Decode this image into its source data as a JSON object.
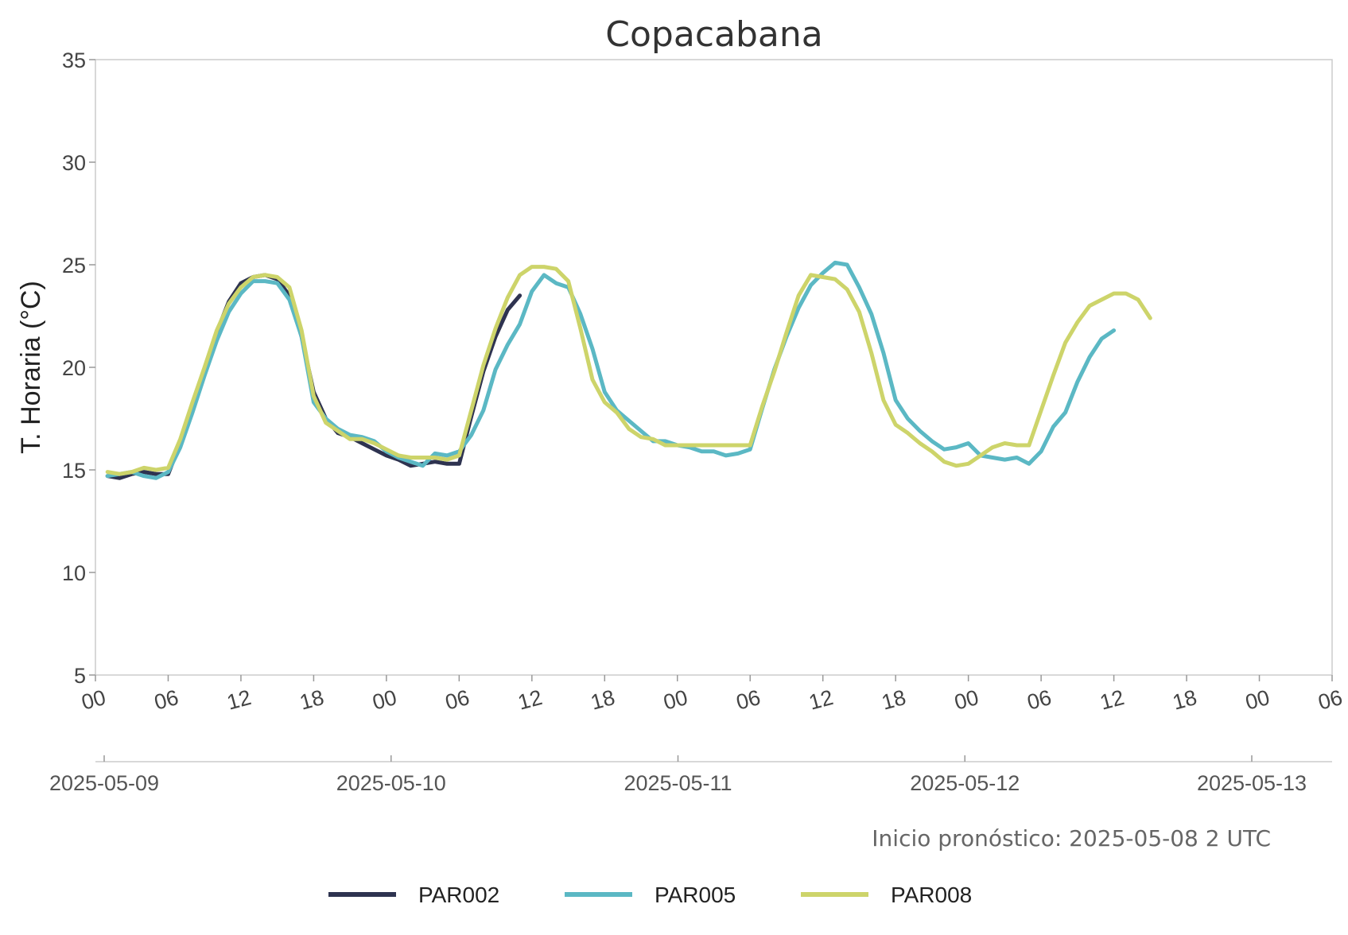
{
  "chart_data": {
    "type": "line",
    "title": "Copacabana",
    "ylabel": "T. Horaria (°C)",
    "xlabel": "",
    "ylim": [
      5,
      35
    ],
    "yticks": [
      5,
      10,
      15,
      20,
      25,
      30,
      35
    ],
    "x_unit": "hours from 2025-05-09 00:00",
    "xlim": [
      0,
      102
    ],
    "hour_ticks": [
      {
        "x": 0,
        "label": "00"
      },
      {
        "x": 6,
        "label": "06"
      },
      {
        "x": 12,
        "label": "12"
      },
      {
        "x": 18,
        "label": "18"
      },
      {
        "x": 24,
        "label": "00"
      },
      {
        "x": 30,
        "label": "06"
      },
      {
        "x": 36,
        "label": "12"
      },
      {
        "x": 42,
        "label": "18"
      },
      {
        "x": 48,
        "label": "00"
      },
      {
        "x": 54,
        "label": "06"
      },
      {
        "x": 60,
        "label": "12"
      },
      {
        "x": 66,
        "label": "18"
      },
      {
        "x": 72,
        "label": "00"
      },
      {
        "x": 78,
        "label": "06"
      },
      {
        "x": 84,
        "label": "12"
      },
      {
        "x": 90,
        "label": "18"
      },
      {
        "x": 96,
        "label": "00"
      },
      {
        "x": 102,
        "label": "06"
      }
    ],
    "date_ticks": [
      {
        "x": 0,
        "label": "2025-05-09"
      },
      {
        "x": 24,
        "label": "2025-05-10"
      },
      {
        "x": 48,
        "label": "2025-05-11"
      },
      {
        "x": 72,
        "label": "2025-05-12"
      },
      {
        "x": 96,
        "label": "2025-05-13"
      }
    ],
    "annotation": "Inicio pronóstico: 2025-05-08 2 UTC",
    "legend_position": "bottom",
    "grid": false,
    "series": [
      {
        "name": "PAR002",
        "color": "#2e3350",
        "x": [
          1,
          2,
          3,
          4,
          5,
          6,
          7,
          8,
          9,
          10,
          11,
          12,
          13,
          14,
          15,
          16,
          17,
          18,
          19,
          20,
          21,
          22,
          23,
          24,
          25,
          26,
          27,
          28,
          29,
          30,
          31,
          32,
          33,
          34,
          35
        ],
        "y": [
          14.7,
          14.6,
          14.8,
          14.9,
          14.8,
          14.8,
          16.3,
          17.9,
          19.8,
          21.7,
          23.2,
          24.1,
          24.4,
          24.5,
          24.3,
          23.5,
          21.5,
          18.8,
          17.5,
          16.8,
          16.6,
          16.3,
          16.0,
          15.7,
          15.5,
          15.2,
          15.3,
          15.4,
          15.3,
          15.3,
          17.6,
          19.8,
          21.5,
          22.8,
          23.5
        ]
      },
      {
        "name": "PAR005",
        "color": "#5bb8c4",
        "x": [
          1,
          2,
          3,
          4,
          5,
          6,
          7,
          8,
          9,
          10,
          11,
          12,
          13,
          14,
          15,
          16,
          17,
          18,
          19,
          20,
          21,
          22,
          23,
          24,
          25,
          26,
          27,
          28,
          29,
          30,
          31,
          32,
          33,
          34,
          35,
          36,
          37,
          38,
          39,
          40,
          41,
          42,
          43,
          44,
          45,
          46,
          47,
          48,
          49,
          50,
          51,
          52,
          53,
          54,
          55,
          56,
          57,
          58,
          59,
          60,
          61,
          62,
          63,
          64,
          65,
          66,
          67,
          68,
          69,
          70,
          71,
          72,
          73,
          74,
          75,
          76,
          77,
          78,
          79,
          80,
          81,
          82,
          83,
          84,
          85
        ],
        "y": [
          14.7,
          14.8,
          14.9,
          14.7,
          14.6,
          14.9,
          16.1,
          17.8,
          19.6,
          21.3,
          22.7,
          23.6,
          24.2,
          24.2,
          24.1,
          23.3,
          21.5,
          18.3,
          17.5,
          17.0,
          16.7,
          16.6,
          16.4,
          15.9,
          15.6,
          15.4,
          15.2,
          15.8,
          15.7,
          15.9,
          16.7,
          17.9,
          19.9,
          21.1,
          22.1,
          23.7,
          24.5,
          24.1,
          23.9,
          22.6,
          20.9,
          18.8,
          17.9,
          17.4,
          16.9,
          16.4,
          16.4,
          16.2,
          16.1,
          15.9,
          15.9,
          15.7,
          15.8,
          16.0,
          18.0,
          19.9,
          21.5,
          22.9,
          24.0,
          24.6,
          25.1,
          25.0,
          23.9,
          22.6,
          20.7,
          18.4,
          17.5,
          16.9,
          16.4,
          16.0,
          16.1,
          16.3,
          15.7,
          15.6,
          15.5,
          15.6,
          15.3,
          15.9,
          17.1,
          17.8,
          19.3,
          20.5,
          21.4,
          21.8,
          null
        ]
      },
      {
        "name": "PAR008",
        "color": "#cdd46a",
        "x": [
          1,
          2,
          3,
          4,
          5,
          6,
          7,
          8,
          9,
          10,
          11,
          12,
          13,
          14,
          15,
          16,
          17,
          18,
          19,
          20,
          21,
          22,
          23,
          24,
          25,
          26,
          27,
          28,
          29,
          30,
          31,
          32,
          33,
          34,
          35,
          36,
          37,
          38,
          39,
          40,
          41,
          42,
          43,
          44,
          45,
          46,
          47,
          48,
          49,
          50,
          51,
          52,
          53,
          54,
          55,
          56,
          57,
          58,
          59,
          60,
          61,
          62,
          63,
          64,
          65,
          66,
          67,
          68,
          69,
          70,
          71,
          72,
          73,
          74,
          75,
          76,
          77,
          78,
          79,
          80,
          81,
          82,
          83,
          84,
          85,
          86,
          87,
          88,
          89
        ],
        "y": [
          14.9,
          14.8,
          14.9,
          15.1,
          15.0,
          15.1,
          16.5,
          18.3,
          20.0,
          21.8,
          23.1,
          23.9,
          24.4,
          24.5,
          24.4,
          23.9,
          21.8,
          18.6,
          17.3,
          16.9,
          16.5,
          16.5,
          16.3,
          16.0,
          15.7,
          15.6,
          15.6,
          15.6,
          15.5,
          15.7,
          17.9,
          20.1,
          21.9,
          23.4,
          24.5,
          24.9,
          24.9,
          24.8,
          24.2,
          21.9,
          19.4,
          18.3,
          17.8,
          17.0,
          16.6,
          16.5,
          16.2,
          16.2,
          16.2,
          16.2,
          16.2,
          16.2,
          16.2,
          16.2,
          18.1,
          19.8,
          21.7,
          23.5,
          24.5,
          24.4,
          24.3,
          23.8,
          22.7,
          20.7,
          18.4,
          17.2,
          16.8,
          16.3,
          15.9,
          15.4,
          15.2,
          15.3,
          15.7,
          16.1,
          16.3,
          16.2,
          16.2,
          17.9,
          19.6,
          21.2,
          22.2,
          23.0,
          23.3,
          23.6,
          23.6,
          23.3,
          22.4,
          null,
          null
        ]
      }
    ]
  }
}
